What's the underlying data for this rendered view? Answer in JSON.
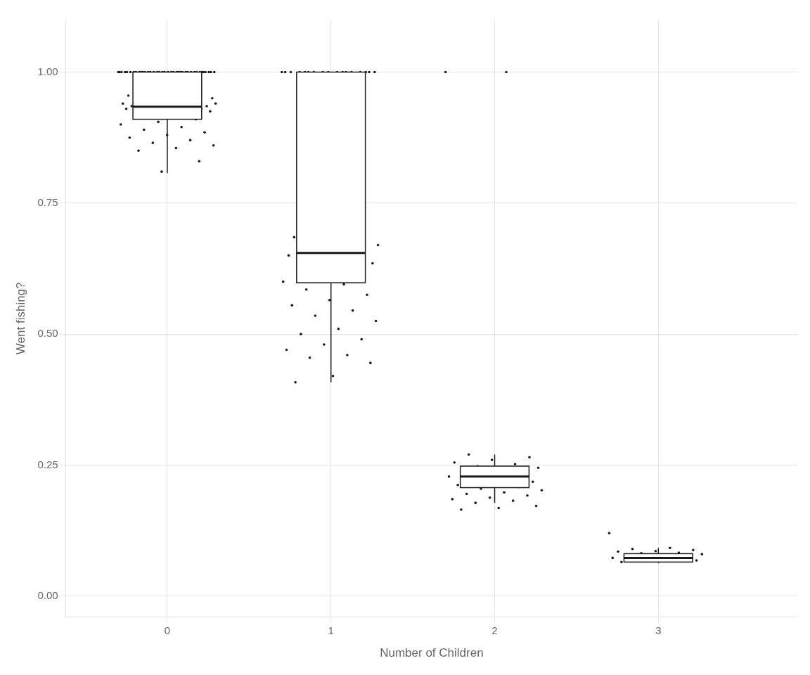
{
  "chart_data": {
    "type": "boxplot",
    "xlabel": "Number of Children",
    "ylabel": "Went fishing?",
    "color": "#1a1a1a",
    "grid": true,
    "x": [
      0,
      1,
      2,
      3
    ],
    "xlim": [
      -0.62,
      3.85
    ],
    "xticks": [
      0,
      1,
      2,
      3
    ],
    "ylim": [
      -0.04,
      1.1
    ],
    "yticks": [
      {
        "value": 0.0,
        "label": "0.00"
      },
      0.25,
      {
        "value": 0.5,
        "label": "0.50"
      },
      0.75,
      {
        "value": 1.0,
        "label": "1.00"
      }
    ],
    "boxes": [
      {
        "q1": 0.91,
        "median": 0.934,
        "q3": 1.0,
        "whisker_low": 0.807,
        "whisker_high": 1.0
      },
      {
        "q1": 0.598,
        "median": 0.655,
        "q3": 1.0,
        "whisker_low": 0.408,
        "whisker_high": 1.0
      },
      {
        "q1": 0.207,
        "median": 0.228,
        "q3": 0.248,
        "whisker_low": 0.178,
        "whisker_high": 0.27
      },
      {
        "q1": 0.065,
        "median": 0.073,
        "q3": 0.081,
        "whisker_low": 0.063,
        "whisker_high": 0.092
      }
    ],
    "values": [
      [
        1.0,
        1.0,
        1.0,
        1.0,
        1.0,
        1.0,
        1.0,
        1.0,
        1.0,
        1.0,
        1.0,
        1.0,
        1.0,
        1.0,
        1.0,
        1.0,
        1.0,
        1.0,
        1.0,
        1.0,
        1.0,
        1.0,
        1.0,
        1.0,
        1.0,
        1.0,
        1.0,
        1.0,
        1.0,
        1.0,
        1.0,
        1.0,
        1.0,
        1.0,
        1.0,
        1.0,
        1.0,
        1.0,
        0.96,
        0.955,
        0.955,
        0.96,
        0.95,
        0.95,
        0.945,
        0.95,
        0.955,
        0.94,
        0.945,
        0.94,
        0.935,
        0.938,
        0.935,
        0.935,
        0.94,
        0.94,
        0.935,
        0.93,
        0.93,
        0.935,
        0.93,
        0.928,
        0.928,
        0.925,
        0.92,
        0.915,
        0.91,
        0.905,
        0.9,
        0.895,
        0.89,
        0.885,
        0.88,
        0.875,
        0.87,
        0.865,
        0.86,
        0.855,
        0.85,
        0.83,
        0.81
      ],
      [
        1.0,
        1.0,
        1.0,
        1.0,
        1.0,
        1.0,
        1.0,
        1.0,
        1.0,
        1.0,
        1.0,
        1.0,
        1.0,
        1.0,
        1.0,
        1.0,
        1.0,
        0.69,
        0.685,
        0.68,
        0.675,
        0.67,
        0.67,
        0.665,
        0.66,
        0.655,
        0.65,
        0.645,
        0.64,
        0.635,
        0.625,
        0.62,
        0.615,
        0.61,
        0.6,
        0.595,
        0.585,
        0.575,
        0.565,
        0.555,
        0.545,
        0.535,
        0.525,
        0.51,
        0.5,
        0.49,
        0.48,
        0.47,
        0.46,
        0.455,
        0.445,
        0.42,
        0.408
      ],
      [
        1.0,
        1.0,
        0.27,
        0.265,
        0.26,
        0.255,
        0.252,
        0.248,
        0.245,
        0.242,
        0.238,
        0.235,
        0.232,
        0.228,
        0.225,
        0.222,
        0.218,
        0.215,
        0.212,
        0.208,
        0.205,
        0.202,
        0.198,
        0.195,
        0.192,
        0.188,
        0.185,
        0.182,
        0.178,
        0.172,
        0.168,
        0.165
      ],
      [
        0.12,
        0.092,
        0.09,
        0.088,
        0.086,
        0.085,
        0.083,
        0.082,
        0.08,
        0.079,
        0.077,
        0.076,
        0.075,
        0.073,
        0.072,
        0.07,
        0.068,
        0.066,
        0.065
      ]
    ]
  }
}
